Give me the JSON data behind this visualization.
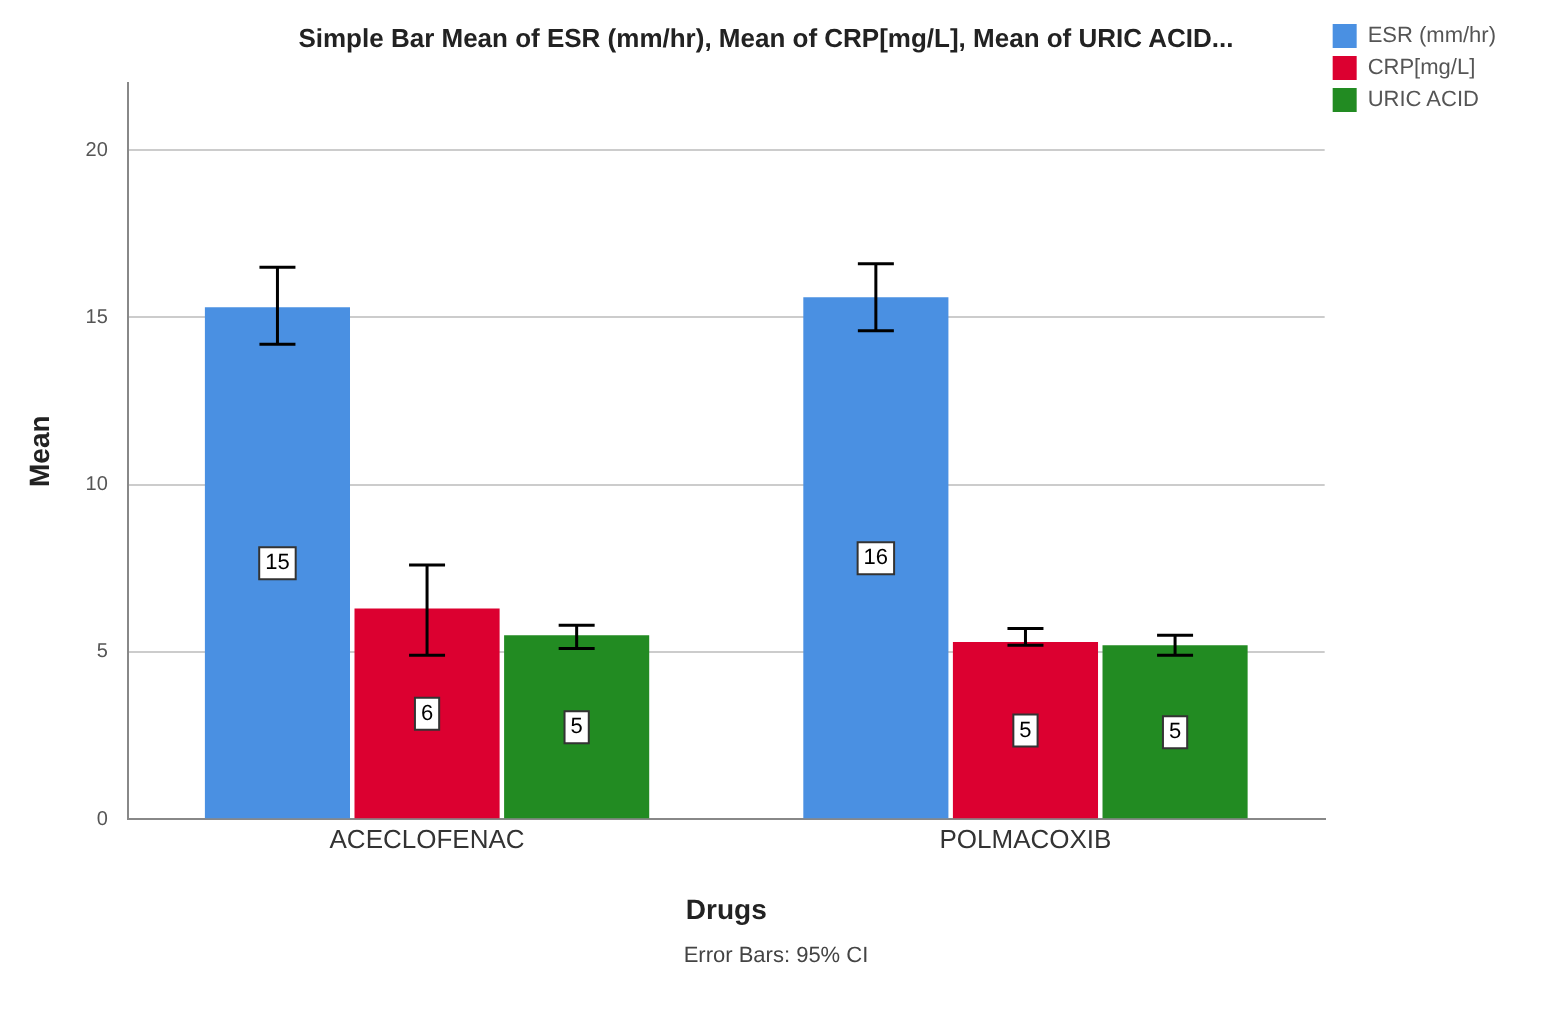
{
  "chart_data": {
    "type": "bar",
    "title": "Simple Bar Mean of ESR (mm/hr), Mean of CRP[mg/L], Mean of URIC ACID...",
    "xlabel": "Drugs",
    "ylabel": "Mean",
    "categories": [
      "ACECLOFENAC",
      "POLMACOXIB"
    ],
    "series": [
      {
        "name": "ESR (mm/hr)",
        "color": "#4a90e2",
        "values": [
          15.3,
          15.6
        ],
        "errors": [
          [
            14.2,
            16.5
          ],
          [
            14.6,
            16.6
          ]
        ],
        "value_labels": [
          "15",
          "16"
        ]
      },
      {
        "name": "CRP[mg/L]",
        "color": "#dc0030",
        "values": [
          6.3,
          5.3
        ],
        "errors": [
          [
            4.9,
            7.6
          ],
          [
            5.2,
            5.7
          ]
        ],
        "value_labels": [
          "6",
          "5"
        ]
      },
      {
        "name": "URIC ACID",
        "color": "#228b22",
        "values": [
          5.5,
          5.2
        ],
        "errors": [
          [
            5.1,
            5.8
          ],
          [
            4.9,
            5.5
          ]
        ],
        "value_labels": [
          "5",
          "5"
        ]
      }
    ],
    "ylim": [
      0,
      22
    ],
    "yticks": [
      0,
      5,
      10,
      15,
      20
    ],
    "grid": "y",
    "legend": "top right",
    "annotations": [
      "Error Bars: 95% CI"
    ]
  }
}
